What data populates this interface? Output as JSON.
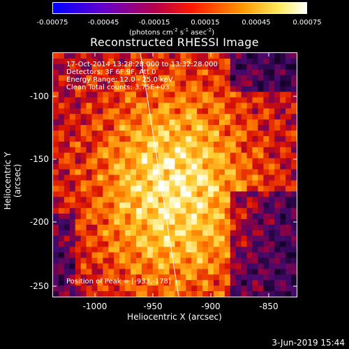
{
  "colorbar": {
    "ticks": [
      "-0.00075",
      "-0.00045",
      "-0.00015",
      "0.00015",
      "0.00045",
      "0.00075"
    ],
    "unit_prefix": "(photons cm",
    "unit_exp1": "-2",
    "unit_mid": " s",
    "unit_exp2": "-1",
    "unit_mid2": " asec",
    "unit_exp3": "-2",
    "unit_suffix": ")"
  },
  "title": "Reconstructed RHESSI Image",
  "info": {
    "time_range": "17-Oct-2014 13:28:28.000 to 13:32:28.000",
    "detectors": "Detectors: 3F 6F 9F, Att 0",
    "energy": "Energy Range: 12.0 - 25.0 keV",
    "clean": "Clean    Total counts: 3.75E+03",
    "peak": "Position of Peak = [-933,-178]"
  },
  "axes": {
    "xlabel": "Heliocentric X (arcsec)",
    "ylabel": "Heliocentric Y (arcsec)",
    "xticks": [
      "-1000",
      "-950",
      "-900",
      "-850"
    ],
    "yticks": [
      "-100",
      "-150",
      "-200",
      "-250"
    ]
  },
  "datestamp": "3-Jun-2019 15:44"
}
